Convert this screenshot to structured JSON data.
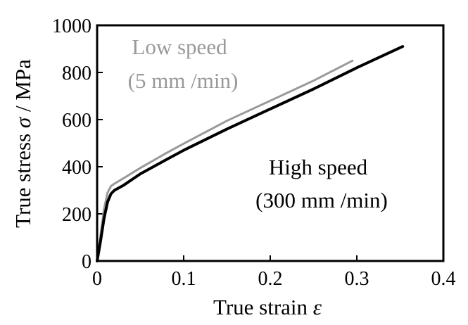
{
  "chart_data": {
    "type": "line",
    "xlabel": "True strain",
    "xlabel_symbol": "ε",
    "ylabel": "True stress",
    "ylabel_symbol": "σ",
    "ylabel_unit": "/ MPa",
    "xlim": [
      0,
      0.4
    ],
    "ylim": [
      0,
      1000
    ],
    "xticks": [
      0,
      0.1,
      0.2,
      0.3,
      0.4
    ],
    "xtick_labels": [
      "0",
      "0.1",
      "0.2",
      "0.3",
      "0.4"
    ],
    "yticks": [
      0,
      200,
      400,
      600,
      800,
      1000
    ],
    "ytick_labels": [
      "0",
      "200",
      "400",
      "600",
      "800",
      "1000"
    ],
    "grid": false,
    "series": [
      {
        "name": "Low speed (5 mm /min)",
        "color": "#999999",
        "x": [
          0,
          0.004,
          0.008,
          0.012,
          0.016,
          0.02,
          0.03,
          0.05,
          0.08,
          0.1,
          0.15,
          0.2,
          0.25,
          0.295
        ],
        "y": [
          0,
          110,
          220,
          290,
          318,
          328,
          350,
          395,
          458,
          498,
          595,
          680,
          765,
          850
        ]
      },
      {
        "name": "High speed (300 mm /min)",
        "color": "#000000",
        "x": [
          0,
          0.004,
          0.008,
          0.012,
          0.016,
          0.02,
          0.03,
          0.05,
          0.08,
          0.1,
          0.15,
          0.2,
          0.25,
          0.3,
          0.353
        ],
        "y": [
          0,
          85,
          180,
          250,
          285,
          300,
          320,
          370,
          430,
          470,
          560,
          645,
          730,
          820,
          910
        ]
      }
    ]
  },
  "annotations": {
    "low_line1": "Low speed",
    "low_line2": "(5 mm /min)",
    "high_line1": "High speed",
    "high_line2": "(300 mm /min)"
  }
}
